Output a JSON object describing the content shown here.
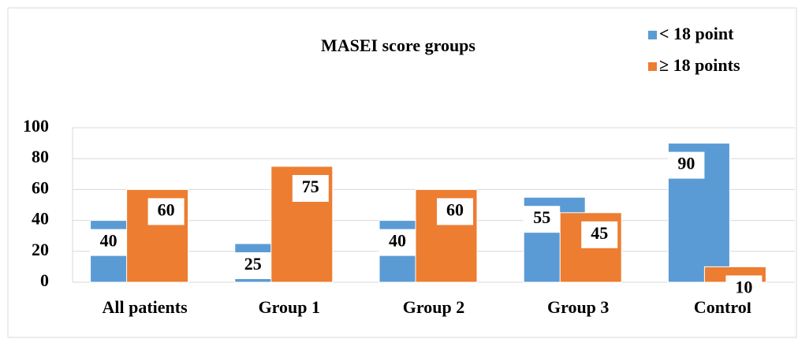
{
  "chart_data": {
    "type": "bar",
    "title": "MASEI score groups",
    "categories": [
      "All patients",
      "Group 1",
      "Group 2",
      "Group 3",
      "Control"
    ],
    "series": [
      {
        "name": "< 18 point",
        "color": "#5b9bd5",
        "values": [
          40,
          25,
          40,
          55,
          90
        ]
      },
      {
        "name": "≥ 18 points",
        "color": "#ed7d31",
        "values": [
          60,
          75,
          60,
          45,
          10
        ]
      }
    ],
    "ylim": [
      0,
      100
    ],
    "yticks": [
      0,
      20,
      40,
      60,
      80,
      100
    ],
    "grid": true,
    "legend": "top-right"
  }
}
